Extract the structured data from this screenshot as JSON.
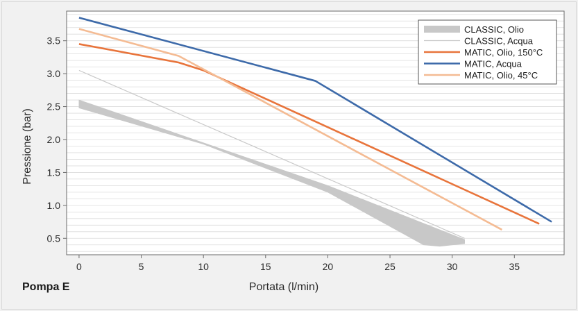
{
  "caption": "Pompa E",
  "chart_data": {
    "type": "line",
    "xlabel": "Portata (l/min)",
    "ylabel": "Pressione (bar)",
    "xlim": [
      -1,
      39
    ],
    "ylim": [
      0.25,
      3.95
    ],
    "xticks": [
      0,
      5,
      10,
      15,
      20,
      25,
      30,
      35
    ],
    "yticks": [
      0.5,
      1.0,
      1.5,
      2.0,
      2.5,
      3.0,
      3.5
    ],
    "ytick_labels": [
      "0.5",
      "1.0",
      "1.5",
      "2.0",
      "2.5",
      "3.0",
      "3.5"
    ],
    "grid": "horizontal minor lines",
    "legend_position": "top-right",
    "band": {
      "name": "CLASSIC, Olio",
      "color": "#c8c8c8",
      "upper": [
        [
          0,
          2.6
        ],
        [
          10,
          1.95
        ],
        [
          20,
          1.3
        ],
        [
          31,
          0.48
        ]
      ],
      "lower": [
        [
          0,
          2.48
        ],
        [
          10,
          1.93
        ],
        [
          20,
          1.2
        ],
        [
          27.7,
          0.4
        ],
        [
          29,
          0.38
        ],
        [
          31,
          0.42
        ]
      ]
    },
    "series": [
      {
        "name": "CLASSIC, Acqua",
        "color": "#c9c9c9",
        "width": 1.2,
        "x": [
          0,
          31
        ],
        "y": [
          3.05,
          0.5
        ]
      },
      {
        "name": "MATIC, Olio, 150°C",
        "color": "#e8743b",
        "width": 2.6,
        "x": [
          0,
          8,
          10,
          37
        ],
        "y": [
          3.45,
          3.17,
          3.05,
          0.72
        ]
      },
      {
        "name": "MATIC, Acqua",
        "color": "#3d6aa9",
        "width": 2.6,
        "x": [
          0,
          19,
          38
        ],
        "y": [
          3.85,
          2.89,
          0.75
        ]
      },
      {
        "name": "MATIC, Olio, 45°C",
        "color": "#f4bb93",
        "width": 2.6,
        "x": [
          0,
          8,
          34
        ],
        "y": [
          3.68,
          3.27,
          0.63
        ]
      }
    ]
  }
}
